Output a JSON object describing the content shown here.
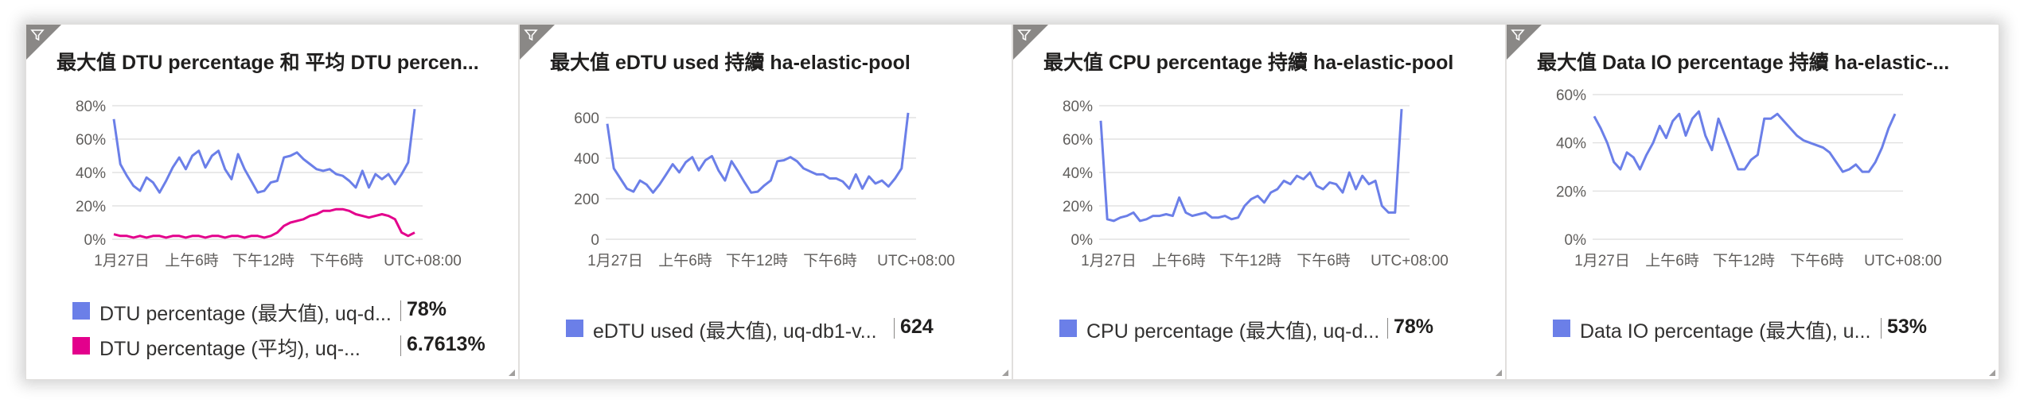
{
  "colors": {
    "blue": "#6b7fe8",
    "magenta": "#e3008c",
    "grid": "#dcdcdc",
    "tick": "#605e5c"
  },
  "chart_data": [
    {
      "type": "line",
      "title": "最大值 DTU percentage 和 平均 DTU percen...",
      "xlabel": "",
      "ylabel": "",
      "x_tick_labels": [
        "1月27日",
        "上午6時",
        "下午12時",
        "下午6時",
        "UTC+08:00"
      ],
      "y_tick_labels": [
        "80%",
        "60%",
        "40%",
        "20%",
        "0%"
      ],
      "ylim": [
        0,
        80
      ],
      "grid": true,
      "legend_position": "bottom",
      "series": [
        {
          "name": "DTU percentage (最大值), uq-d...",
          "summary": "78%",
          "color": "#6b7fe8",
          "values": [
            72,
            45,
            38,
            32,
            29,
            37,
            34,
            28,
            35,
            43,
            49,
            42,
            50,
            53,
            43,
            50,
            53,
            42,
            36,
            51,
            42,
            35,
            28,
            29,
            34,
            35,
            49,
            50,
            52,
            48,
            45,
            42,
            41,
            42,
            39,
            38,
            35,
            31,
            41,
            31,
            39,
            36,
            39,
            33,
            39,
            46,
            78
          ]
        },
        {
          "name": "DTU percentage (平均), uq-...",
          "summary": "6.7613%",
          "color": "#e3008c",
          "values": [
            3,
            2,
            2,
            1,
            2,
            1,
            2,
            2,
            1,
            2,
            2,
            1,
            2,
            2,
            1,
            2,
            2,
            1,
            2,
            2,
            1,
            2,
            2,
            1,
            2,
            4,
            8,
            10,
            11,
            12,
            14,
            15,
            17,
            17,
            18,
            18,
            17,
            15,
            14,
            13,
            14,
            15,
            14,
            12,
            4,
            2,
            4
          ]
        }
      ]
    },
    {
      "type": "line",
      "title": "最大值 eDTU used 持續 ha-elastic-pool",
      "xlabel": "",
      "ylabel": "",
      "x_tick_labels": [
        "1月27日",
        "上午6時",
        "下午12時",
        "下午6時",
        "UTC+08:00"
      ],
      "y_tick_labels": [
        "600",
        "400",
        "200",
        "0"
      ],
      "ylim": [
        0,
        600
      ],
      "grid": true,
      "legend_position": "bottom",
      "series": [
        {
          "name": "eDTU used (最大值), uq-db1-v...",
          "summary": "624",
          "color": "#6b7fe8",
          "values": [
            570,
            350,
            300,
            250,
            235,
            290,
            270,
            230,
            270,
            320,
            370,
            330,
            380,
            405,
            340,
            390,
            410,
            340,
            290,
            385,
            335,
            280,
            230,
            235,
            265,
            290,
            385,
            390,
            405,
            385,
            350,
            335,
            320,
            320,
            300,
            300,
            285,
            250,
            320,
            250,
            310,
            275,
            290,
            260,
            300,
            350,
            624
          ]
        }
      ]
    },
    {
      "type": "line",
      "title": "最大值 CPU percentage 持續 ha-elastic-pool",
      "xlabel": "",
      "ylabel": "",
      "x_tick_labels": [
        "1月27日",
        "上午6時",
        "下午12時",
        "下午6時",
        "UTC+08:00"
      ],
      "y_tick_labels": [
        "80%",
        "60%",
        "40%",
        "20%",
        "0%"
      ],
      "ylim": [
        0,
        80
      ],
      "grid": true,
      "legend_position": "bottom",
      "series": [
        {
          "name": "CPU percentage (最大值), uq-d...",
          "summary": "78%",
          "color": "#6b7fe8",
          "values": [
            71,
            12,
            11,
            13,
            14,
            16,
            11,
            12,
            14,
            14,
            15,
            14,
            25,
            16,
            14,
            15,
            16,
            13,
            13,
            14,
            12,
            13,
            20,
            24,
            26,
            22,
            28,
            30,
            35,
            33,
            38,
            36,
            40,
            32,
            30,
            34,
            33,
            28,
            40,
            30,
            38,
            33,
            35,
            20,
            16,
            16,
            78
          ]
        }
      ]
    },
    {
      "type": "line",
      "title": "最大值 Data IO percentage 持續 ha-elastic-...",
      "xlabel": "",
      "ylabel": "",
      "x_tick_labels": [
        "1月27日",
        "上午6時",
        "下午12時",
        "下午6時",
        "UTC+08:00"
      ],
      "y_tick_labels": [
        "60%",
        "40%",
        "20%",
        "0%"
      ],
      "ylim": [
        0,
        60
      ],
      "grid": true,
      "legend_position": "bottom",
      "series": [
        {
          "name": "Data IO percentage (最大值), u...",
          "summary": "53%",
          "color": "#6b7fe8",
          "values": [
            51,
            46,
            40,
            32,
            29,
            36,
            34,
            29,
            35,
            40,
            47,
            42,
            49,
            52,
            43,
            50,
            53,
            43,
            37,
            50,
            43,
            36,
            29,
            29,
            33,
            35,
            50,
            50,
            52,
            49,
            46,
            43,
            41,
            40,
            39,
            38,
            36,
            32,
            28,
            29,
            31,
            28,
            28,
            32,
            38,
            46,
            52
          ]
        }
      ]
    }
  ]
}
